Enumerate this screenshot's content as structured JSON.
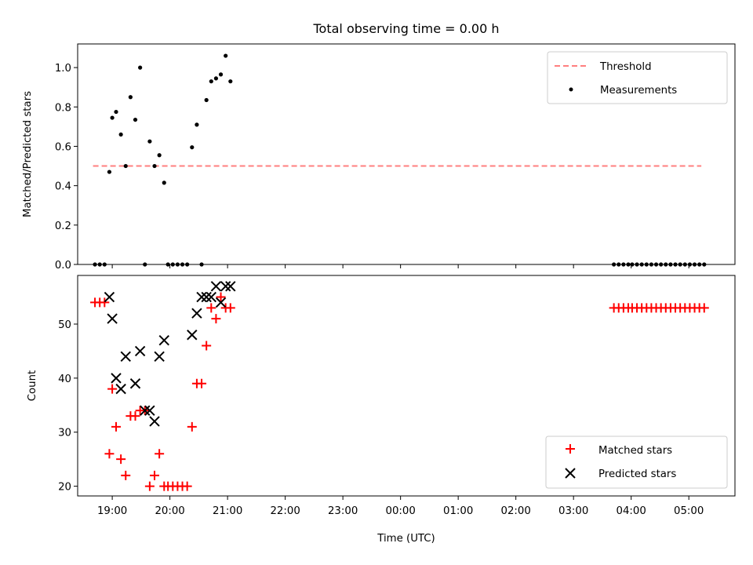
{
  "chart_data": {
    "title": "Total observing time = 0.00 h",
    "xlabel": "Time (UTC)",
    "x_tick_labels": [
      "19:00",
      "20:00",
      "21:00",
      "22:00",
      "23:00",
      "00:00",
      "01:00",
      "02:00",
      "03:00",
      "04:00",
      "05:00"
    ],
    "panels": [
      {
        "type": "scatter",
        "ylabel": "Matched/Predicted stars",
        "ylim": [
          0,
          1.12
        ],
        "y_ticks": [
          "0.0",
          "0.2",
          "0.4",
          "0.6",
          "0.8",
          "1.0"
        ],
        "legend_position": "top-right",
        "series": [
          {
            "name": "Threshold",
            "kind": "line",
            "color": "#ff7f7f",
            "x": [
              "18:40",
              "05:13"
            ],
            "y": [
              0.5,
              0.5
            ]
          },
          {
            "name": "Measurements",
            "kind": "scatter",
            "color": "#000000",
            "x": [
              "18:42",
              "18:47",
              "18:52",
              "18:57",
              "19:00",
              "19:04",
              "19:09",
              "19:14",
              "19:19",
              "19:24",
              "19:29",
              "19:34",
              "19:39",
              "19:44",
              "19:49",
              "19:54",
              "19:58",
              "20:03",
              "20:08",
              "20:13",
              "20:18",
              "20:23",
              "20:28",
              "20:33",
              "20:38",
              "20:43",
              "20:48",
              "20:53",
              "20:58",
              "21:03",
              "03:42",
              "03:47",
              "03:52",
              "03:57",
              "04:01",
              "04:06",
              "04:11",
              "04:16",
              "04:21",
              "04:26",
              "04:31",
              "04:36",
              "04:41",
              "04:46",
              "04:51",
              "04:56",
              "05:01",
              "05:06",
              "05:11",
              "05:16"
            ],
            "y": [
              0,
              0,
              0,
              0.47,
              0.745,
              0.775,
              0.66,
              0.5,
              0.85,
              0.735,
              1.0,
              0,
              0.625,
              0.5,
              0.555,
              0.415,
              0,
              0,
              0,
              0,
              0,
              0.595,
              0.71,
              0,
              0.835,
              0.93,
              0.945,
              0.965,
              1.06,
              0.93,
              0,
              0,
              0,
              0,
              0,
              0,
              0,
              0,
              0,
              0,
              0,
              0,
              0,
              0,
              0,
              0,
              0,
              0,
              0,
              0
            ]
          }
        ]
      },
      {
        "type": "scatter",
        "ylabel": "Count",
        "ylim": [
          18.2,
          59.0
        ],
        "y_ticks": [
          "20",
          "30",
          "40",
          "50"
        ],
        "legend_position": "bottom-right",
        "series": [
          {
            "name": "Matched stars",
            "marker": "plus",
            "color": "#ff0000",
            "x": [
              "18:42",
              "18:47",
              "18:52",
              "18:57",
              "19:00",
              "19:04",
              "19:09",
              "19:14",
              "19:19",
              "19:24",
              "19:29",
              "19:34",
              "19:39",
              "19:44",
              "19:49",
              "19:54",
              "19:58",
              "20:03",
              "20:08",
              "20:13",
              "20:18",
              "20:23",
              "20:28",
              "20:33",
              "20:38",
              "20:43",
              "20:48",
              "20:53",
              "20:58",
              "21:03",
              "03:42",
              "03:47",
              "03:52",
              "03:57",
              "04:01",
              "04:06",
              "04:11",
              "04:16",
              "04:21",
              "04:26",
              "04:31",
              "04:36",
              "04:41",
              "04:46",
              "04:51",
              "04:56",
              "05:01",
              "05:06",
              "05:11",
              "05:16"
            ],
            "y": [
              54,
              54,
              54,
              26,
              38,
              31,
              25,
              22,
              33,
              33,
              34,
              34,
              20,
              22,
              26,
              20,
              20,
              20,
              20,
              20,
              20,
              31,
              39,
              39,
              46,
              53,
              51,
              55,
              53,
              53,
              53,
              53,
              53,
              53,
              53,
              53,
              53,
              53,
              53,
              53,
              53,
              53,
              53,
              53,
              53,
              53,
              53,
              53,
              53,
              53
            ]
          },
          {
            "name": "Predicted stars",
            "marker": "x",
            "color": "#000000",
            "x": [
              "18:57",
              "19:00",
              "19:04",
              "19:09",
              "19:14",
              "19:24",
              "19:29",
              "19:34",
              "19:39",
              "19:44",
              "19:49",
              "19:54",
              "20:23",
              "20:28",
              "20:33",
              "20:38",
              "20:43",
              "20:48",
              "20:53",
              "20:58",
              "21:03"
            ],
            "y": [
              55,
              51,
              40,
              38,
              44,
              39,
              45,
              34,
              34,
              32,
              44,
              47,
              48,
              52,
              55,
              55,
              55,
              57,
              54,
              57,
              57
            ]
          }
        ]
      }
    ]
  }
}
